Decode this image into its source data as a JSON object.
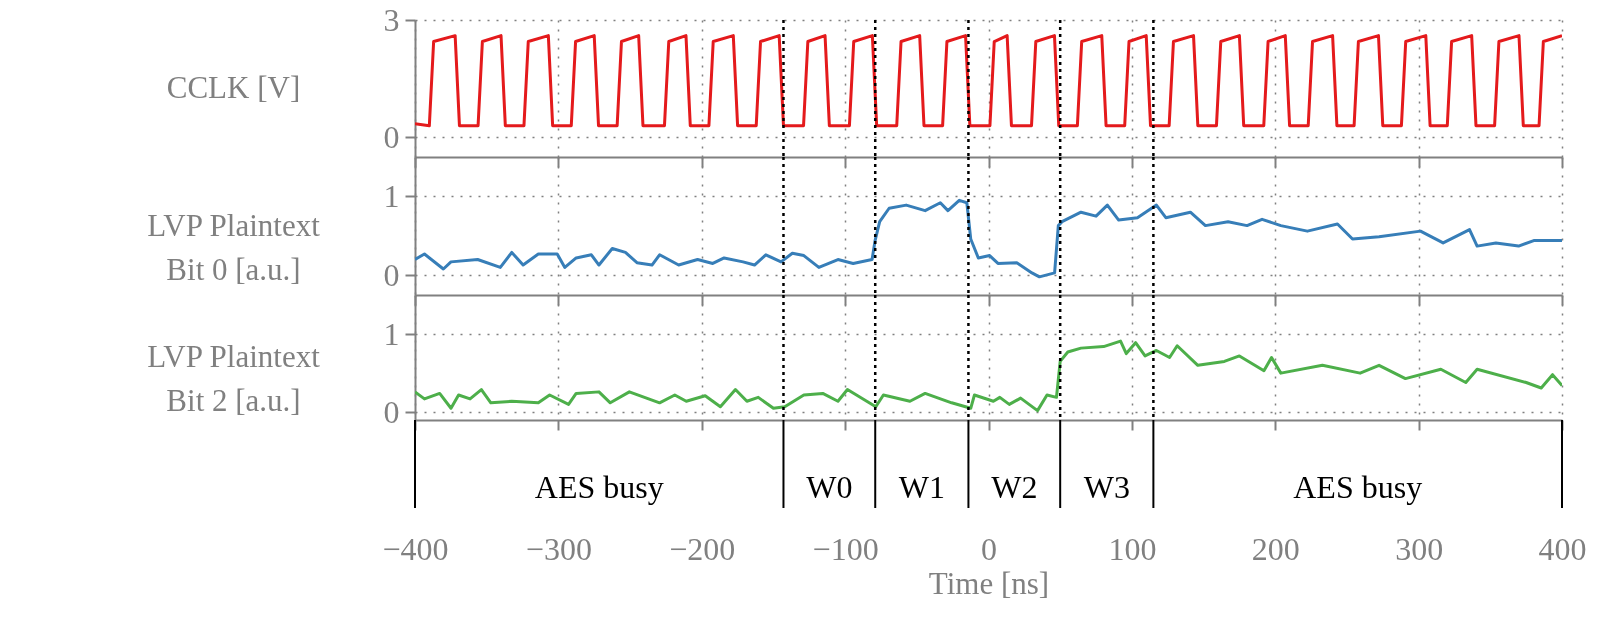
{
  "chart_data": [
    {
      "type": "line",
      "ylabel": "CCLK [V]",
      "xlim": [
        -400,
        400
      ],
      "xticks": [
        -400,
        -300,
        -200,
        -100,
        0,
        100,
        200,
        300,
        400
      ],
      "ylim": [
        -0.5,
        3
      ],
      "yticks": [
        0,
        3
      ],
      "grid": true,
      "tick_labels": "y",
      "ref_lines": [
        {
          "axis": "x",
          "value": -143,
          "label": null,
          "color": "#000000",
          "line_style": "dotted"
        },
        {
          "axis": "x",
          "value": -79,
          "label": null,
          "color": "#000000",
          "line_style": "dotted"
        },
        {
          "axis": "x",
          "value": -14,
          "label": null,
          "color": "#000000",
          "line_style": "dotted"
        },
        {
          "axis": "x",
          "value": 50,
          "label": null,
          "color": "#000000",
          "line_style": "dotted"
        },
        {
          "axis": "x",
          "value": 115,
          "label": null,
          "color": "#000000",
          "line_style": "dotted"
        }
      ],
      "series": [
        {
          "color": "#e41a1c",
          "x": [
            -400,
            -390,
            -387,
            -372,
            -369,
            -356,
            -353,
            -340,
            -337,
            -324,
            -321,
            -307,
            -304,
            -291,
            -288,
            -275,
            -272,
            -259,
            -256,
            -244,
            -241,
            -226,
            -223,
            -211,
            -208,
            -195,
            -192,
            -178,
            -175,
            -162,
            -159,
            -146,
            -143,
            -129,
            -126,
            -114,
            -111,
            -97,
            -94,
            -81,
            -78,
            -64,
            -61,
            -48,
            -45,
            -32,
            -29,
            -16,
            -13,
            1,
            4,
            13,
            16,
            30,
            33,
            46,
            49,
            62,
            65,
            79,
            82,
            95,
            98,
            110,
            113,
            126,
            129,
            143,
            146,
            159,
            162,
            175,
            178,
            192,
            195,
            207,
            210,
            223,
            226,
            240,
            243,
            255,
            258,
            272,
            275,
            288,
            291,
            305,
            308,
            320,
            323,
            337,
            340,
            353,
            356,
            370,
            373,
            384,
            387,
            400
          ],
          "values": [
            0.35,
            0.3,
            2.45,
            2.6,
            0.3,
            0.3,
            2.45,
            2.6,
            0.3,
            0.3,
            2.45,
            2.6,
            0.3,
            0.3,
            2.45,
            2.6,
            0.3,
            0.3,
            2.45,
            2.6,
            0.3,
            0.3,
            2.45,
            2.6,
            0.3,
            0.3,
            2.45,
            2.6,
            0.3,
            0.3,
            2.45,
            2.6,
            0.3,
            0.3,
            2.45,
            2.6,
            0.3,
            0.3,
            2.45,
            2.6,
            0.3,
            0.3,
            2.45,
            2.6,
            0.3,
            0.3,
            2.45,
            2.6,
            0.3,
            0.3,
            2.45,
            2.6,
            0.3,
            0.3,
            2.45,
            2.6,
            0.3,
            0.3,
            2.45,
            2.6,
            0.3,
            0.3,
            2.45,
            2.6,
            0.3,
            0.3,
            2.45,
            2.6,
            0.3,
            0.3,
            2.45,
            2.6,
            0.3,
            0.3,
            2.45,
            2.6,
            0.3,
            0.3,
            2.45,
            2.6,
            0.3,
            0.3,
            2.45,
            2.6,
            0.3,
            0.3,
            2.45,
            2.6,
            0.3,
            0.3,
            2.45,
            2.6,
            0.3,
            0.3,
            2.45,
            2.6,
            0.3,
            0.3,
            2.45,
            2.6
          ]
        }
      ]
    },
    {
      "type": "line",
      "ylabel": "LVP Plaintext\nBit 0 [a.u.]",
      "xlim": [
        -400,
        400
      ],
      "xticks": [
        -400,
        -300,
        -200,
        -100,
        0,
        100,
        200,
        300,
        400
      ],
      "ylim": [
        -0.25,
        1.5
      ],
      "yticks": [
        0,
        1
      ],
      "grid": true,
      "tick_labels": "y",
      "ref_lines": [
        {
          "axis": "x",
          "value": -143,
          "label": null,
          "color": "#000000",
          "line_style": "dotted"
        },
        {
          "axis": "x",
          "value": -79,
          "label": null,
          "color": "#000000",
          "line_style": "dotted"
        },
        {
          "axis": "x",
          "value": -14,
          "label": null,
          "color": "#000000",
          "line_style": "dotted"
        },
        {
          "axis": "x",
          "value": 50,
          "label": null,
          "color": "#000000",
          "line_style": "dotted"
        },
        {
          "axis": "x",
          "value": 115,
          "label": null,
          "color": "#000000",
          "line_style": "dotted"
        }
      ],
      "series": [
        {
          "color": "#377eb8",
          "x": [
            -400,
            -393.4,
            -380.2,
            -374.9,
            -356.3,
            -340.5,
            -332.5,
            -324.6,
            -314,
            -300.8,
            -295.5,
            -287.6,
            -277,
            -271.7,
            -262.4,
            -253.2,
            -245.2,
            -234.7,
            -229.4,
            -216.1,
            -202.9,
            -192.3,
            -184.4,
            -171.2,
            -163.2,
            -155.3,
            -144.7,
            -136.8,
            -128.8,
            -118.3,
            -105,
            -94.4,
            -81.2,
            -79.1,
            -75.9,
            -69.3,
            -57.4,
            -44.2,
            -33.6,
            -28.3,
            -20.4,
            -15.1,
            -12.4,
            -7.1,
            0.8,
            6.6,
            19.7,
            30.3,
            35.5,
            46.1,
            48.7,
            51.3,
            64.5,
            75,
            82.9,
            90.8,
            103.9,
            117.1,
            123.7,
            140.8,
            151.3,
            167.1,
            180.3,
            190.8,
            203.9,
            222.4,
            243.4,
            253.9,
            272.4,
            301.3,
            317.1,
            335.5,
            340.8,
            353.9,
            369.7,
            380.3,
            400
          ],
          "values": [
            0.2,
            0.27,
            0.08,
            0.17,
            0.2,
            0.1,
            0.29,
            0.13,
            0.27,
            0.27,
            0.1,
            0.22,
            0.26,
            0.13,
            0.34,
            0.29,
            0.16,
            0.13,
            0.26,
            0.13,
            0.2,
            0.15,
            0.22,
            0.17,
            0.13,
            0.26,
            0.17,
            0.28,
            0.25,
            0.1,
            0.2,
            0.15,
            0.2,
            0.44,
            0.68,
            0.85,
            0.89,
            0.82,
            0.92,
            0.82,
            0.95,
            0.92,
            0.46,
            0.22,
            0.25,
            0.15,
            0.16,
            0.03,
            -0.02,
            0.03,
            0.63,
            0.68,
            0.8,
            0.75,
            0.89,
            0.7,
            0.73,
            0.89,
            0.73,
            0.8,
            0.63,
            0.68,
            0.63,
            0.71,
            0.63,
            0.56,
            0.65,
            0.46,
            0.49,
            0.56,
            0.41,
            0.58,
            0.37,
            0.41,
            0.37,
            0.44,
            0.44
          ]
        }
      ]
    },
    {
      "type": "line",
      "ylabel": "LVP Plaintext\nBit 2 [a.u.]",
      "xlabel": "Time [ns]",
      "xlim": [
        -400,
        400
      ],
      "xticks": [
        -400,
        -300,
        -200,
        -100,
        0,
        100,
        200,
        300,
        400
      ],
      "ylim": [
        -0.1,
        1.5
      ],
      "yticks": [
        0,
        1
      ],
      "grid": true,
      "ref_lines": [
        {
          "axis": "x",
          "value": -143,
          "label": null,
          "color": "#000000",
          "line_style": "dotted"
        },
        {
          "axis": "x",
          "value": -79,
          "label": null,
          "color": "#000000",
          "line_style": "dotted"
        },
        {
          "axis": "x",
          "value": -14,
          "label": null,
          "color": "#000000",
          "line_style": "dotted"
        },
        {
          "axis": "x",
          "value": 50,
          "label": null,
          "color": "#000000",
          "line_style": "dotted"
        },
        {
          "axis": "x",
          "value": 115,
          "label": null,
          "color": "#000000",
          "line_style": "dotted"
        }
      ],
      "annotations": [
        "AES busy",
        "W0",
        "W1",
        "W2",
        "W3",
        "AES busy"
      ],
      "series": [
        {
          "color": "#4daf4a",
          "x": [
            -400,
            -393.4,
            -382.8,
            -374.9,
            -369.6,
            -361.6,
            -353.7,
            -347.1,
            -332.5,
            -314,
            -306.1,
            -292.9,
            -287.6,
            -271.7,
            -263.8,
            -250.5,
            -229.4,
            -218.8,
            -210.8,
            -197.6,
            -187,
            -176.5,
            -168.5,
            -160.6,
            -150,
            -142.1,
            -128.8,
            -115.6,
            -105,
            -98.4,
            -78.6,
            -73.3,
            -54.8,
            -44.2,
            -25.7,
            -12.4,
            -9.8,
            3.4,
            7.9,
            14.5,
            22.4,
            34.2,
            40.8,
            47.4,
            50,
            55.3,
            64.5,
            80.3,
            92.1,
            96.1,
            102.6,
            109.2,
            117.1,
            126.3,
            131.6,
            146,
            164.5,
            175,
            192.1,
            197.4,
            203.9,
            232.9,
            259.2,
            272.4,
            290.8,
            315.5,
            332.9,
            340.8,
            375,
            385.5,
            393.4,
            400
          ],
          "values": [
            0.26,
            0.17,
            0.24,
            0.05,
            0.22,
            0.17,
            0.29,
            0.12,
            0.14,
            0.12,
            0.22,
            0.1,
            0.24,
            0.26,
            0.12,
            0.26,
            0.12,
            0.22,
            0.14,
            0.21,
            0.07,
            0.29,
            0.14,
            0.19,
            0.05,
            0.07,
            0.22,
            0.24,
            0.14,
            0.29,
            0.07,
            0.22,
            0.14,
            0.24,
            0.12,
            0.05,
            0.22,
            0.14,
            0.19,
            0.1,
            0.18,
            0.02,
            0.22,
            0.19,
            0.65,
            0.77,
            0.82,
            0.84,
            0.91,
            0.75,
            0.89,
            0.72,
            0.79,
            0.7,
            0.85,
            0.6,
            0.65,
            0.72,
            0.53,
            0.7,
            0.5,
            0.6,
            0.5,
            0.6,
            0.43,
            0.55,
            0.38,
            0.55,
            0.38,
            0.31,
            0.48,
            0.34
          ]
        }
      ]
    }
  ]
}
